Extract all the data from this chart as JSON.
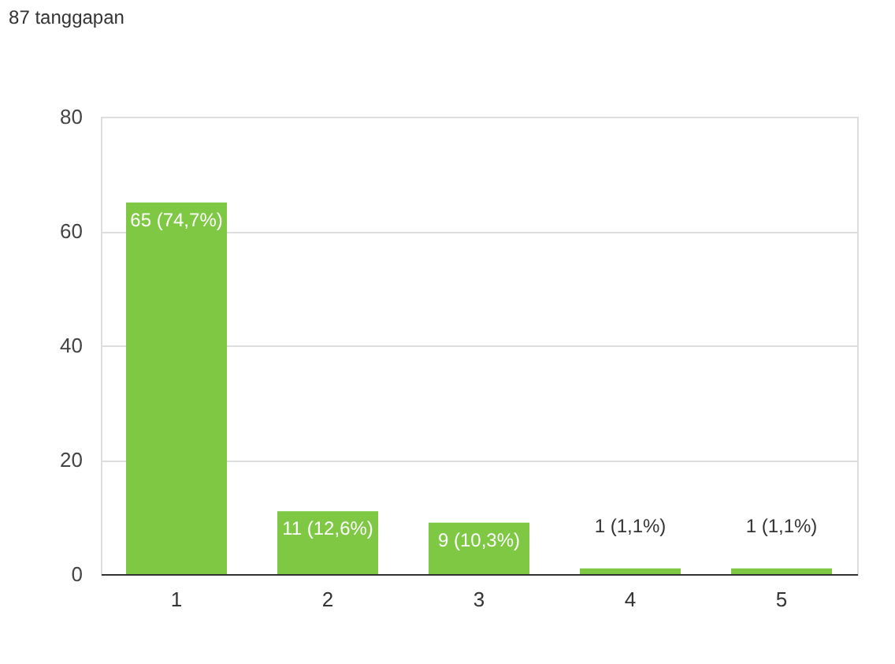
{
  "chart_data": {
    "type": "bar",
    "title": "87 tanggapan",
    "categories": [
      "1",
      "2",
      "3",
      "4",
      "5"
    ],
    "values": [
      65,
      11,
      9,
      1,
      1
    ],
    "value_labels": [
      "65 (74,7%)",
      "11 (12,6%)",
      "9 (10,3%)",
      "1 (1,1%)",
      "1 (1,1%)"
    ],
    "color": "#7ec843",
    "ylim": [
      0,
      80
    ],
    "yticks": [
      0,
      20,
      40,
      60,
      80
    ],
    "grid": "y"
  }
}
